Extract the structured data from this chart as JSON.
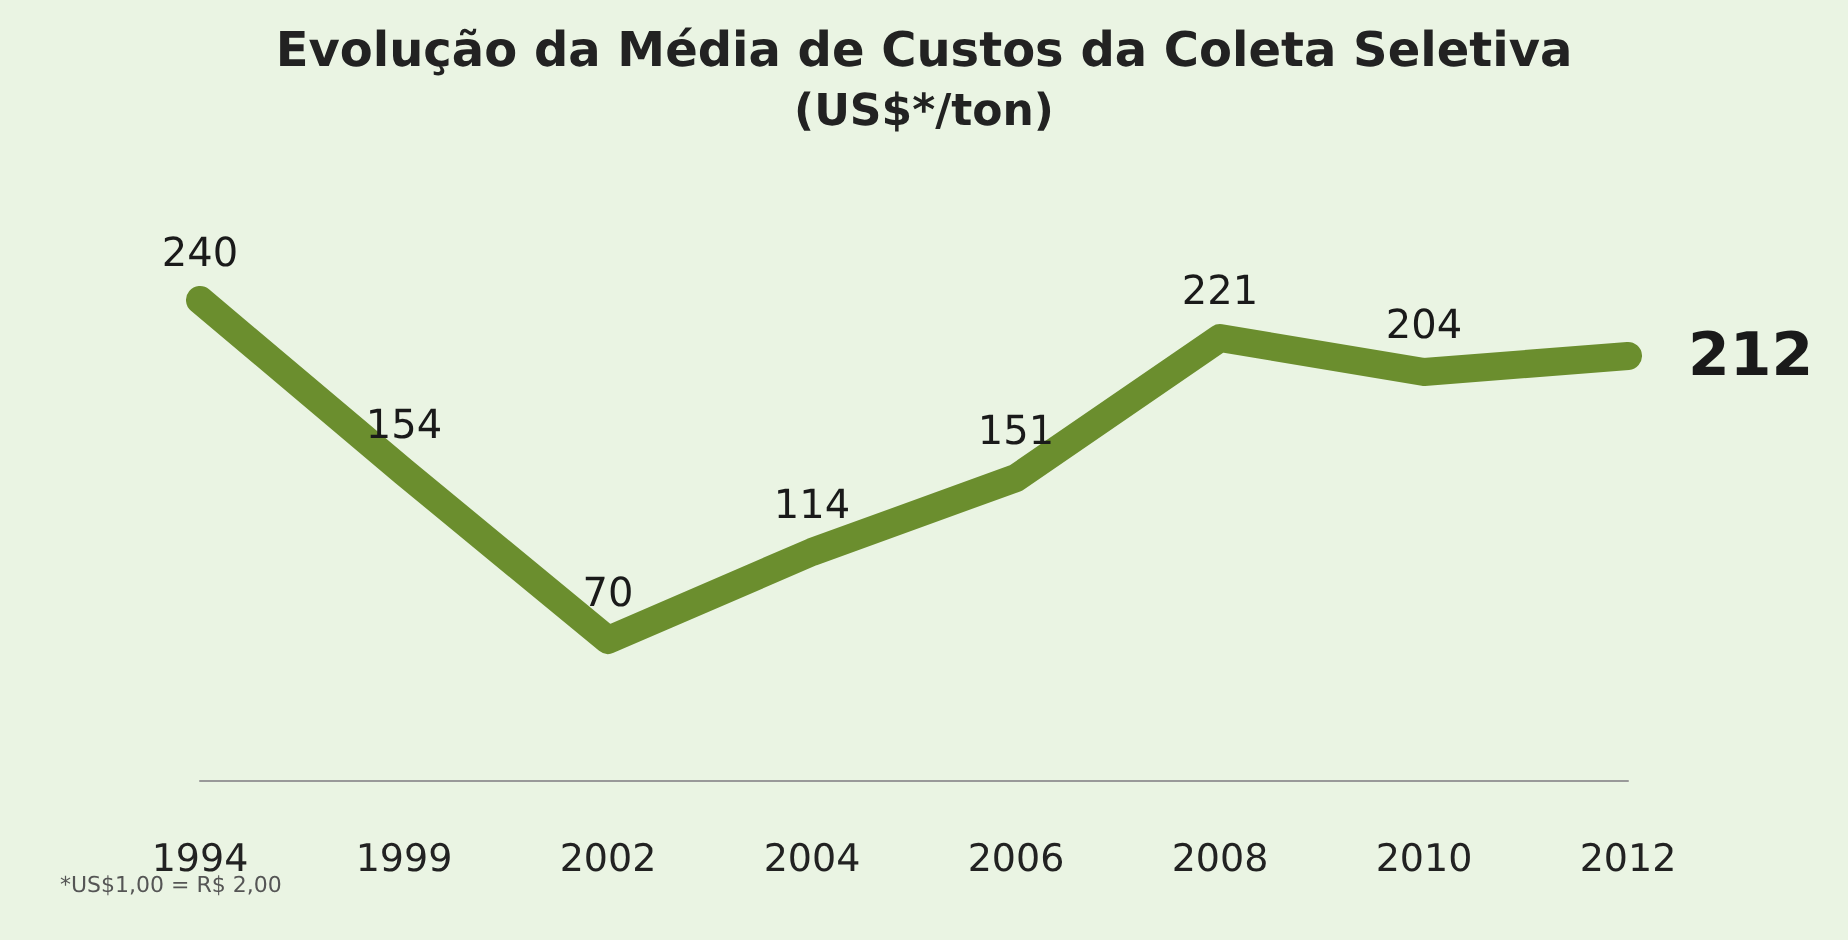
{
  "chart_data": {
    "type": "line",
    "title": "Evolução da Média de Custos da Coleta Seletiva",
    "subtitle": "(US$*/ton)",
    "categories": [
      "1994",
      "1999",
      "2002",
      "2004",
      "2006",
      "2008",
      "2010",
      "2012"
    ],
    "series": [
      {
        "color": "#6b8e2e",
        "values": [
          240,
          154,
          70,
          114,
          151,
          221,
          204,
          212
        ]
      }
    ],
    "data_labels": true,
    "marker": "none",
    "line_style": "solid",
    "grid": false,
    "tick_labels": "x",
    "annotations": [
      "*US$1,00 = R$ 2,00"
    ]
  }
}
